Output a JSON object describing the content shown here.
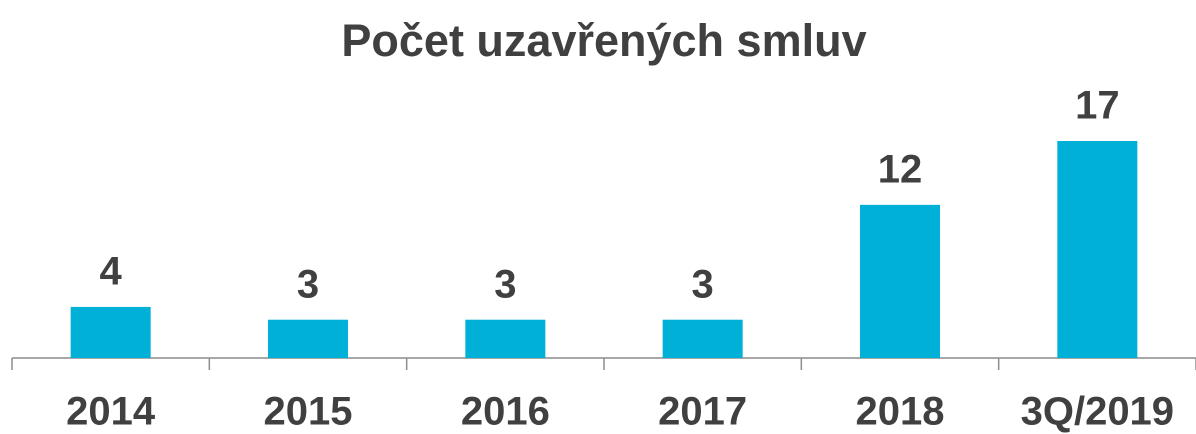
{
  "chart_data": {
    "type": "bar",
    "title": "Počet uzavřených smluv",
    "categories": [
      "2014",
      "2015",
      "2016",
      "2017",
      "2018",
      "3Q/2019"
    ],
    "values": [
      4,
      3,
      3,
      3,
      12,
      17
    ],
    "color": "#00b0d6",
    "ylim": [
      0,
      17
    ]
  }
}
